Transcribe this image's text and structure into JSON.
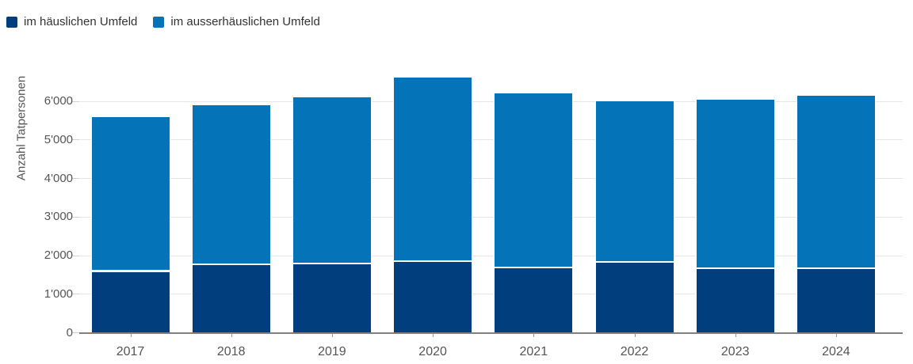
{
  "chart_data": {
    "type": "bar",
    "stacked": true,
    "title": "",
    "xlabel": "",
    "ylabel": "Anzahl Tatpersonen",
    "categories": [
      "2017",
      "2018",
      "2019",
      "2020",
      "2021",
      "2022",
      "2023",
      "2024"
    ],
    "series": [
      {
        "name": "im häuslichen Umfeld",
        "color": "#003e7e",
        "values": [
          1600,
          1780,
          1800,
          1850,
          1700,
          1830,
          1670,
          1670
        ]
      },
      {
        "name": "im ausserhäuslichen Umfeld",
        "color": "#0473b8",
        "values": [
          4020,
          4130,
          4320,
          4790,
          4530,
          4200,
          4400,
          4500
        ]
      }
    ],
    "stack_totals": [
      5620,
      5910,
      6120,
      6640,
      6230,
      6030,
      6070,
      6170
    ],
    "ylim": [
      0,
      6900
    ],
    "yticks": [
      0,
      1000,
      2000,
      3000,
      4000,
      5000,
      6000
    ],
    "ytick_labels": [
      "0",
      "1'000",
      "2'000",
      "3'000",
      "4'000",
      "5'000",
      "6'000"
    ],
    "grid": true,
    "legend_position": "top-left"
  }
}
